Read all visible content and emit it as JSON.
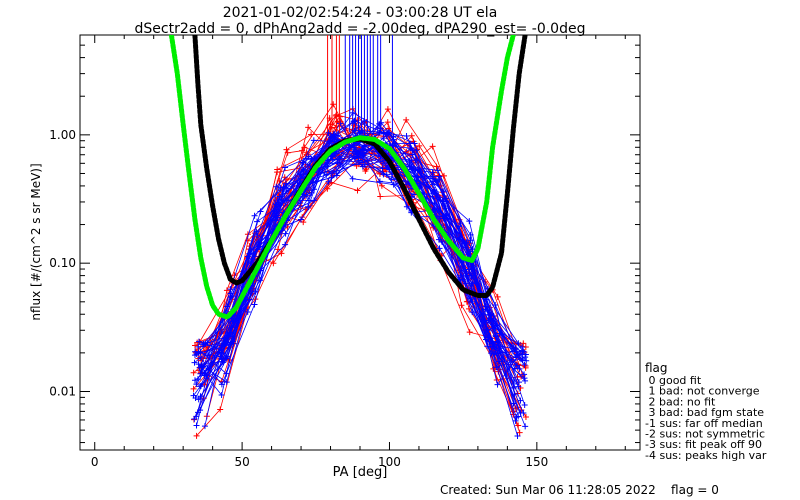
{
  "chart_data": {
    "type": "scatter",
    "title": "2021-01-02/02:54:24 - 03:00:28 UT ela",
    "subtitle": "dSectr2add = 0, dPhAng2add = -2.00deg, dPA290_est=  -0.0deg",
    "xlabel": "PA [deg]",
    "ylabel": "nflux [#/(cm^2 s sr MeV)]",
    "xlim": [
      -5,
      185
    ],
    "ylim": [
      0.0035,
      6.0
    ],
    "yscale": "log",
    "x_ticks": [
      0,
      50,
      100,
      150
    ],
    "x_tick_labels": [
      "0",
      "50",
      "100",
      "150"
    ],
    "y_ticks": [
      0.01,
      0.1,
      1.0
    ],
    "y_tick_labels": [
      "0.01",
      "0.10",
      "1.00"
    ],
    "grid": false,
    "colors": {
      "red": "#ff0000",
      "blue": "#0000ff",
      "black": "#000000",
      "green": "#00ee00"
    },
    "series": [
      {
        "color": "#000000",
        "style": "thick-dashed",
        "x": [
          34,
          35,
          36,
          38,
          40,
          42,
          44,
          46,
          48,
          50,
          55,
          60,
          65,
          70,
          75,
          80,
          85,
          90,
          95,
          100,
          105,
          110,
          115,
          120,
          125,
          130,
          133,
          135,
          138,
          140,
          142,
          144,
          146
        ],
        "y": [
          6.0,
          2.5,
          1.2,
          0.55,
          0.28,
          0.155,
          0.1,
          0.075,
          0.07,
          0.073,
          0.1,
          0.15,
          0.24,
          0.38,
          0.58,
          0.78,
          0.9,
          0.93,
          0.85,
          0.62,
          0.38,
          0.22,
          0.13,
          0.085,
          0.062,
          0.056,
          0.056,
          0.065,
          0.12,
          0.35,
          1.1,
          3.0,
          6.0
        ]
      },
      {
        "color": "#00ee00",
        "style": "thick-dashed",
        "x": [
          26,
          28,
          30,
          32,
          34,
          36,
          38,
          40,
          42,
          45,
          48,
          50,
          55,
          60,
          65,
          70,
          75,
          80,
          85,
          90,
          95,
          100,
          105,
          110,
          115,
          120,
          125,
          128,
          130,
          133,
          135,
          138,
          140,
          142
        ],
        "y": [
          6.0,
          3.0,
          1.2,
          0.5,
          0.22,
          0.11,
          0.066,
          0.047,
          0.04,
          0.038,
          0.045,
          0.055,
          0.09,
          0.15,
          0.24,
          0.37,
          0.56,
          0.75,
          0.88,
          0.95,
          0.92,
          0.78,
          0.55,
          0.35,
          0.22,
          0.15,
          0.11,
          0.105,
          0.13,
          0.3,
          0.8,
          2.2,
          4.0,
          6.0
        ]
      }
    ],
    "legend": {
      "title": "flag",
      "position": "right",
      "entries": [
        " 0 good fit",
        " 1 bad: not converge",
        " 2 bad: no fit",
        " 3 bad: bad fgm state",
        "-1 sus: far off median",
        "-2 sus: not symmetric",
        "-3 sus: fit peak off 90",
        "-4 sus: peaks high var"
      ]
    },
    "footer": "Created: Sun Mar 06 11:28:05 2022    flag = 0"
  }
}
